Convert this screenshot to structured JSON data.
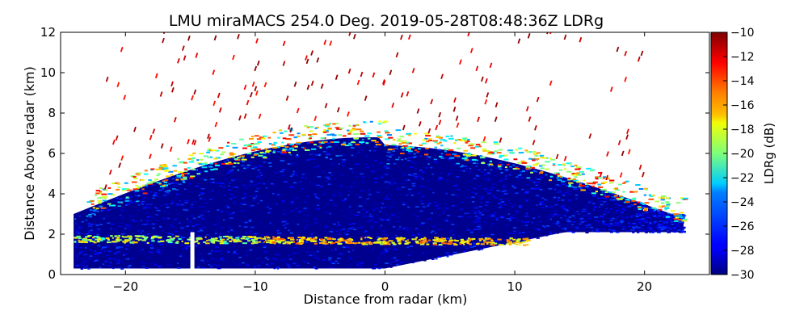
{
  "chart_data": {
    "type": "heatmap",
    "title": "LMU miraMACS 254.0 Deg. 2019-05-28T08:48:36Z  LDRg",
    "xlabel": "Distance from radar (km)",
    "ylabel": "Distance Above radar  (km)",
    "xlim": [
      -25,
      25
    ],
    "ylim": [
      0,
      12
    ],
    "xticks": [
      -20,
      -10,
      0,
      10,
      20
    ],
    "xtick_labels": [
      "−20",
      "−10",
      "0",
      "10",
      "20"
    ],
    "yticks": [
      0,
      2,
      4,
      6,
      8,
      10,
      12
    ],
    "ytick_labels": [
      "0",
      "2",
      "4",
      "6",
      "8",
      "10",
      "12"
    ],
    "colorbar": {
      "label": "LDRg (dB)",
      "colormap": "jet",
      "range": [
        -30,
        -10
      ],
      "ticks": [
        -30,
        -28,
        -26,
        -24,
        -22,
        -20,
        -18,
        -16,
        -14,
        -12,
        -10
      ],
      "tick_labels": [
        "−30",
        "−28",
        "−26",
        "−24",
        "−22",
        "−20",
        "−18",
        "−16",
        "−14",
        "−12",
        "−10"
      ]
    },
    "regions": [
      {
        "name": "low-LDR cloud body",
        "x": [
          -24,
          23
        ],
        "y": [
          0.3,
          6.8
        ],
        "ldr_db": -30
      },
      {
        "name": "melting layer band",
        "x": [
          -24,
          11
        ],
        "y": [
          1.5,
          2.1
        ],
        "ldr_db": -18
      },
      {
        "name": "cloud-top high-LDR edge",
        "x": [
          -23,
          23
        ],
        "y": [
          4,
          9
        ],
        "ldr_db": -14
      },
      {
        "name": "scattered high-altitude returns",
        "x": [
          -22,
          20
        ],
        "y": [
          6,
          12
        ],
        "ldr_db": -10
      }
    ]
  },
  "colors": {
    "background": "#ffffff",
    "axes": "#000000",
    "deep_blue": "#00008f",
    "dark_red": "#8b0000"
  }
}
